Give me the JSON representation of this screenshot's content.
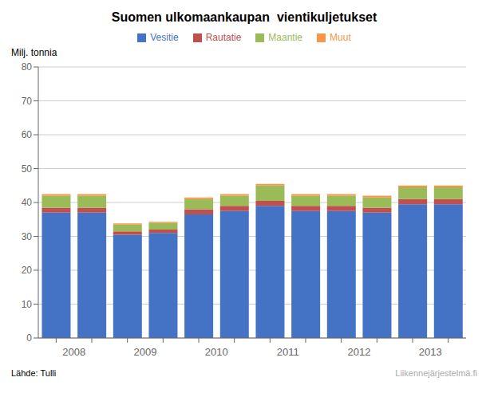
{
  "chart_data": {
    "type": "bar",
    "title": "Suomen ulkomaankaupan  vientikuljetukset",
    "ylabel": "Milj. tonnia",
    "categories": [
      "2008",
      null,
      "2009",
      null,
      "2010",
      null,
      "2011",
      null,
      "2012",
      null,
      "2013",
      null
    ],
    "series": [
      {
        "name": "Vesitie",
        "color": "#4472C4",
        "values": [
          37.0,
          37.0,
          30.5,
          31.0,
          36.5,
          37.5,
          39.0,
          37.5,
          37.5,
          37.0,
          39.5,
          39.5
        ]
      },
      {
        "name": "Rautatie",
        "color": "#C0504D",
        "values": [
          1.5,
          1.5,
          1.0,
          1.0,
          1.5,
          1.5,
          1.5,
          1.5,
          1.5,
          1.5,
          1.5,
          1.5
        ]
      },
      {
        "name": "Maantie",
        "color": "#9BBB59",
        "values": [
          3.5,
          3.5,
          2.0,
          2.0,
          3.0,
          3.0,
          4.5,
          3.0,
          3.0,
          3.0,
          3.5,
          3.5
        ]
      },
      {
        "name": "Muut",
        "color": "#F79646",
        "values": [
          0.5,
          0.5,
          0.3,
          0.3,
          0.5,
          0.5,
          0.5,
          0.5,
          0.5,
          0.5,
          0.5,
          0.5
        ]
      }
    ],
    "ylim": [
      0,
      80
    ],
    "yticks": [
      0,
      10,
      20,
      30,
      40,
      50,
      60,
      70,
      80
    ],
    "stacked": true,
    "grid": true,
    "legend": "top",
    "annotations": [
      "Lähde: Tulli",
      "Liikennejärjestelmä.fi"
    ]
  }
}
